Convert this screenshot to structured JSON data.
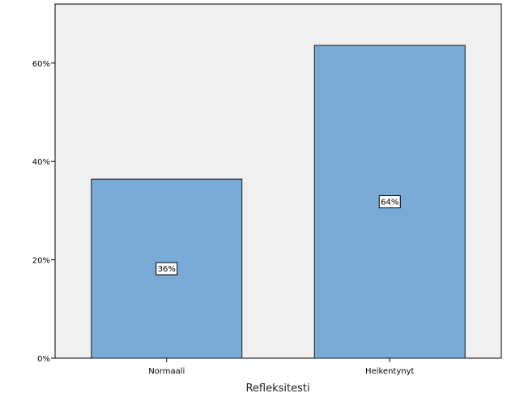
{
  "chart_data": {
    "type": "bar",
    "categories": [
      "Normaali",
      "Heikentynyt"
    ],
    "values": [
      36.4,
      63.6
    ],
    "data_labels": [
      "36%",
      "64%"
    ],
    "title": "",
    "xlabel": "Refleksitesti",
    "ylabel": "",
    "ylim": [
      0,
      72
    ],
    "yticks": [
      0,
      20,
      40,
      60
    ],
    "ytick_labels": [
      "0%",
      "20%",
      "40%",
      "60%"
    ],
    "grid": false,
    "colors": {
      "bar_fill": "#7aaad6",
      "bar_stroke": "#1a1a1a",
      "plot_background": "#f0f0f0",
      "label_background": "#ffffff"
    }
  }
}
